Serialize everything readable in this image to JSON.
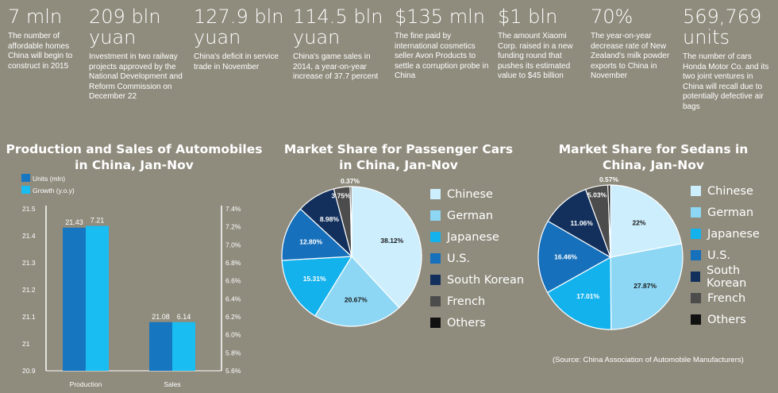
{
  "stats": [
    {
      "value": "7 mln",
      "desc": "The number of affordable homes China will begin to construct in 2015"
    },
    {
      "value": "209 bln yuan",
      "desc": "Investment in two railway projects approved by the National Development and Reform Commission on December 22"
    },
    {
      "value": "127.9 bln yuan",
      "desc": "China's deficit in service trade in November"
    },
    {
      "value": "114.5 bln yuan",
      "desc": "China's game sales in 2014, a year-on-year increase of 37.7 percent"
    },
    {
      "value": "$135 mln",
      "desc": "The fine paid by international cosmetics seller Avon Products to settle a corruption probe in China"
    },
    {
      "value": "$1 bln",
      "desc": "The amount Xiaomi Corp. raised in a new funding round that pushes its estimated value to $45 billion"
    },
    {
      "value": "70%",
      "desc": "The year-on-year decrease rate of New Zealand's milk powder exports to China in November"
    },
    {
      "value": "569,769 units",
      "desc": "The number of cars Honda Motor Co. and its two joint ventures in China will recall due to potentially defective air bags"
    }
  ],
  "source": "(Source: China Association of Automobile Manufacturers)",
  "chart_data": [
    {
      "type": "bar",
      "title": "Production and Sales of Automobiles in China, Jan-Nov",
      "categories": [
        "Production",
        "Sales"
      ],
      "series": [
        {
          "name": "Units (mln)",
          "values": [
            21.43,
            21.08
          ],
          "value_labels": [
            "21.43",
            "21.08"
          ],
          "color": "#1676bf",
          "axis": "left"
        },
        {
          "name": "Growth (y.o.y)",
          "values": [
            7.21,
            6.14
          ],
          "value_labels": [
            "7.21",
            "6.14"
          ],
          "color": "#19bdf2",
          "axis": "right"
        }
      ],
      "left_axis": {
        "ylim": [
          20.9,
          21.5
        ],
        "ticks": [
          "21.5",
          "21.4",
          "21.3",
          "21.2",
          "21.1",
          "21",
          "20.9"
        ]
      },
      "right_axis": {
        "ylim": [
          5.6,
          7.4
        ],
        "ticks": [
          "7.4%",
          "7.2%",
          "7.0%",
          "6.8%",
          "6.6%",
          "6.4%",
          "6.2%",
          "6.0%",
          "5.8%",
          "5.6%"
        ]
      },
      "legend": "top-left",
      "grid": false
    },
    {
      "type": "pie",
      "title": "Market Share for Passenger Cars in China, Jan-Nov",
      "labels": [
        "Chinese",
        "German",
        "Japanese",
        "U.S.",
        "South Korean",
        "French",
        "Others"
      ],
      "values": [
        38.12,
        20.67,
        15.31,
        12.8,
        8.98,
        3.75,
        0.37
      ],
      "value_labels": [
        "38.12%",
        "20.67%",
        "15.31%",
        "12.80%",
        "8.98%",
        "3.75%",
        "0.37%"
      ],
      "colors": [
        "#cdeefc",
        "#8dd7f5",
        "#14b2ed",
        "#1670bb",
        "#13305c",
        "#4c4c4c",
        "#111111"
      ],
      "legend": "right"
    },
    {
      "type": "pie",
      "title": "Market Share for Sedans in China, Jan-Nov",
      "labels": [
        "Chinese",
        "German",
        "Japanese",
        "U.S.",
        "South Korean",
        "French",
        "Others"
      ],
      "values": [
        22,
        27.87,
        17.01,
        16.46,
        11.06,
        5.03,
        0.57
      ],
      "value_labels": [
        "22%",
        "27.87%",
        "17.01%",
        "16.46%",
        "11.06%",
        "5.03%",
        "0.57%"
      ],
      "colors": [
        "#cdeefc",
        "#8dd7f5",
        "#14b2ed",
        "#1670bb",
        "#13305c",
        "#4c4c4c",
        "#111111"
      ],
      "legend": "right"
    }
  ]
}
